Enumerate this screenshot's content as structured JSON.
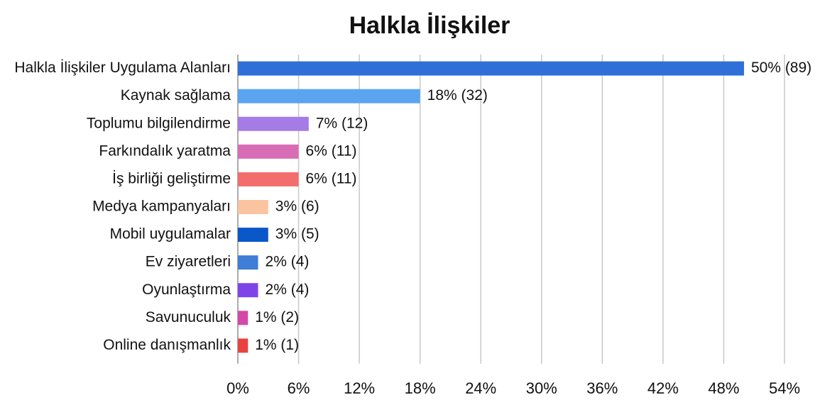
{
  "chart_data": {
    "type": "bar",
    "orientation": "horizontal",
    "title": "Halkla İlişkiler",
    "categories": [
      "Halkla İlişkiler Uygulama Alanları",
      "Kaynak sağlama",
      "Toplumu bilgilendirme",
      "Farkındalık yaratma",
      "İş birliği geliştirme",
      "Medya kampanyaları",
      "Mobil uygulamalar",
      "Ev ziyaretleri",
      "Oyunlaştırma",
      "Savunuculuk",
      "Online danışmanlık"
    ],
    "values": [
      50,
      18,
      7,
      6,
      6,
      3,
      3,
      2,
      2,
      1,
      1
    ],
    "value_labels": [
      "50% (89)",
      "18% (32)",
      "7% (12)",
      "6% (11)",
      "6% (11)",
      "3% (6)",
      "3% (5)",
      "2% (4)",
      "2% (4)",
      "1% (2)",
      "1% (1)"
    ],
    "colors": [
      "#2f6fd8",
      "#5ba4f0",
      "#a57be6",
      "#d96db5",
      "#f46d6d",
      "#fbc4a0",
      "#0a57c8",
      "#3f7dd6",
      "#7e44e8",
      "#d14aa8",
      "#e8433f"
    ],
    "xlim": [
      0,
      54
    ],
    "xticks": [
      {
        "value": 0,
        "label": "0%"
      },
      {
        "value": 6,
        "label": "6%"
      },
      {
        "value": 12,
        "label": "12%"
      },
      {
        "value": 18,
        "label": "18%"
      },
      {
        "value": 24,
        "label": "24%"
      },
      {
        "value": 30,
        "label": "30%"
      },
      {
        "value": 36,
        "label": "36%"
      },
      {
        "value": 42,
        "label": "42%"
      },
      {
        "value": 48,
        "label": "48%"
      },
      {
        "value": 54,
        "label": "54%"
      }
    ],
    "grid": true
  }
}
